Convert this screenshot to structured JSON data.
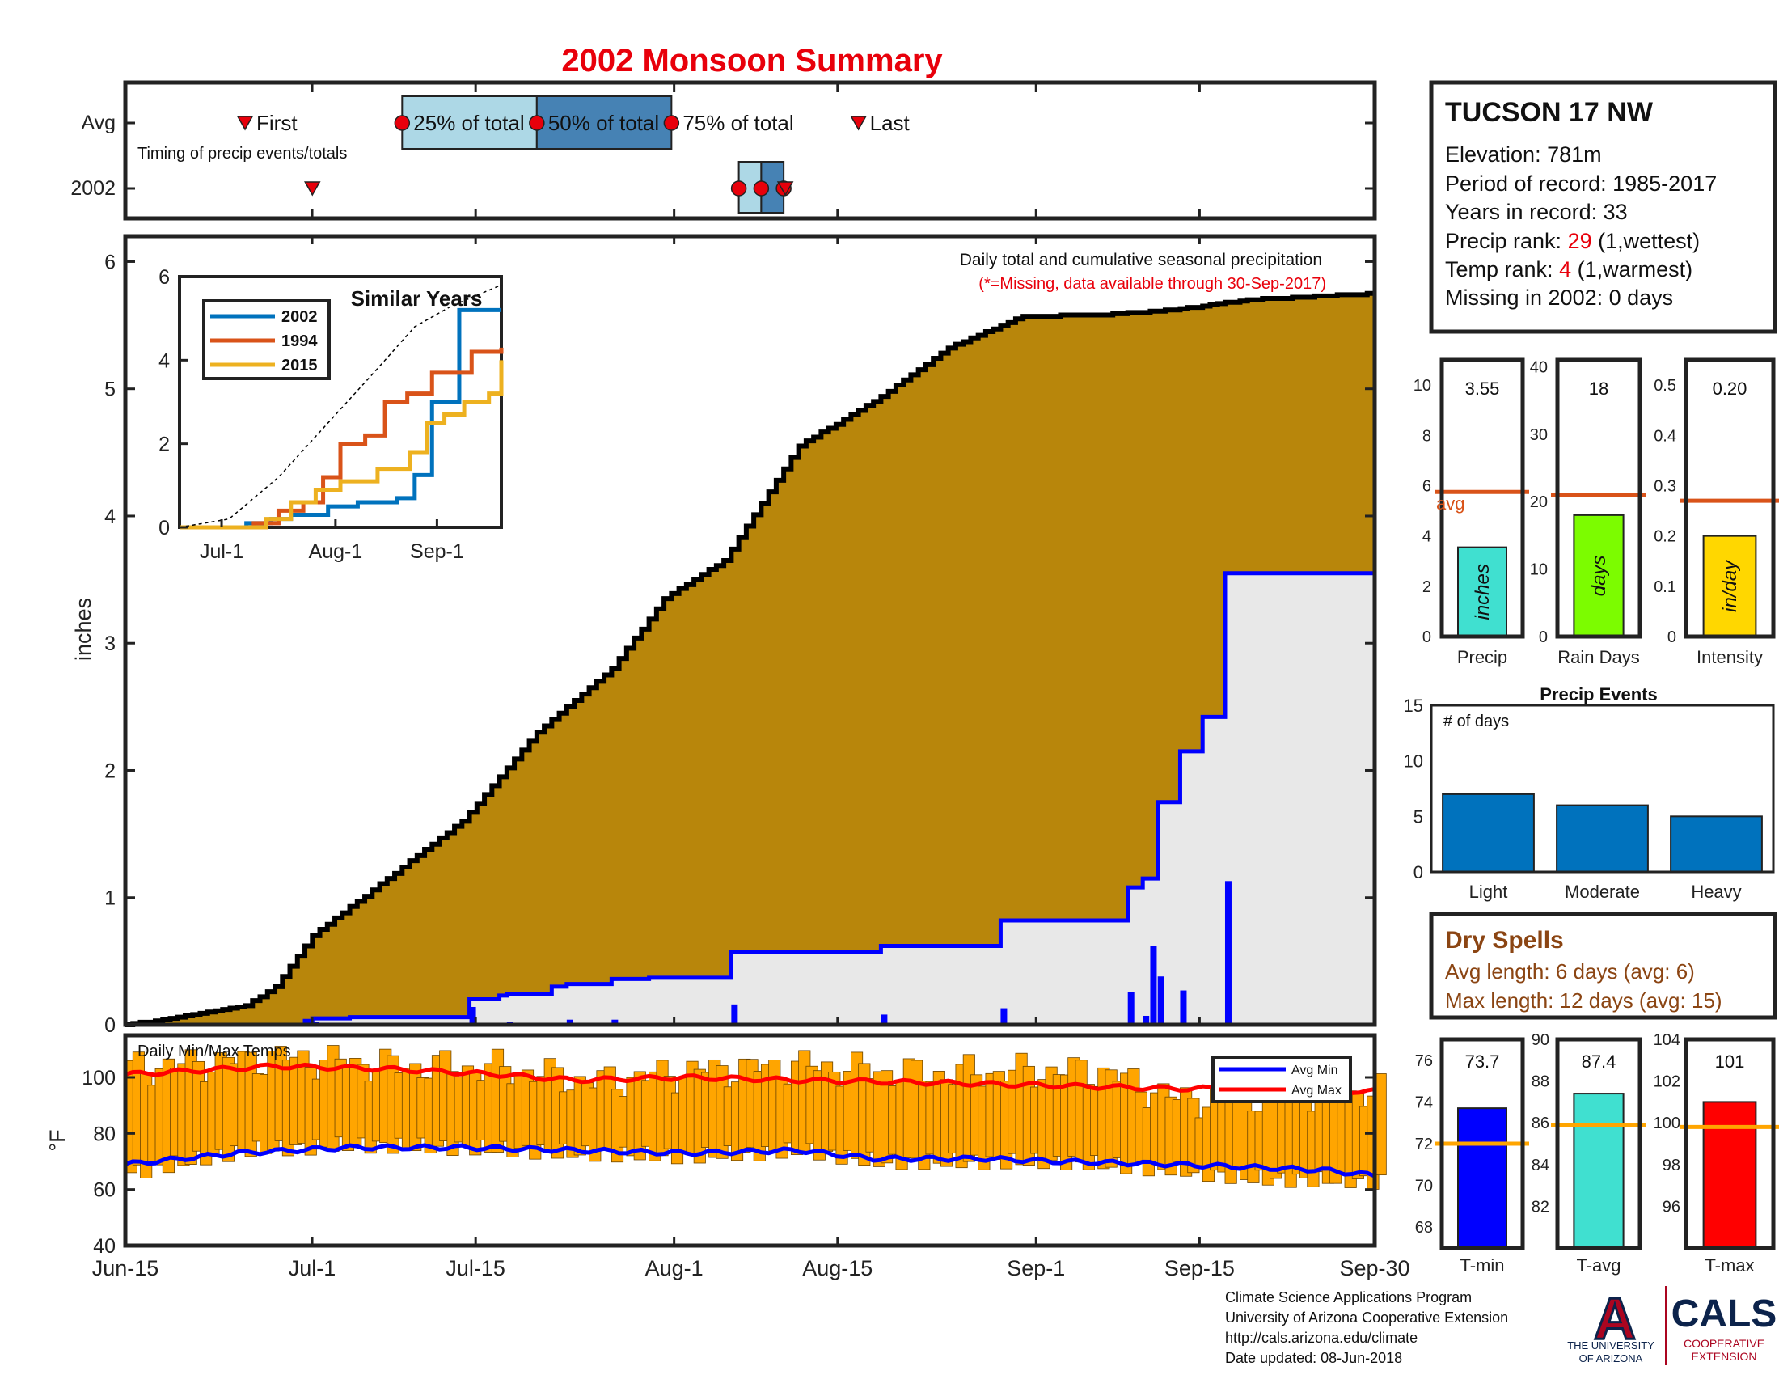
{
  "title": "2002 Monsoon Summary",
  "colors": {
    "title_red": "#e8000b",
    "accumulation_brown": "#b8860b",
    "gray_fill": "#e8e8e8",
    "obs_blue": "#0000ff",
    "avg_orange": "#d95319",
    "tmp_bar": "#ffa500",
    "dry_brown": "#8b4513"
  },
  "timing": {
    "row_avg": "Avg",
    "row_year": "2002",
    "caption": "Timing of precip events/totals",
    "labels": {
      "first": "First",
      "p25": "25% of total",
      "p50": "50% of total",
      "p75": "75% of total",
      "last": "Last"
    }
  },
  "station": {
    "name": "TUCSON 17 NW",
    "elevation": "Elevation: 781m",
    "period": "Period of record: 1985-2017",
    "years": "Years in record: 33",
    "precip_rank_label": "Precip rank: ",
    "precip_rank": "29",
    "precip_rank_note": " (1,wettest)",
    "temp_rank_label": "Temp rank: ",
    "temp_rank": "4",
    "temp_rank_note": " (1,warmest)",
    "missing": "Missing in 2002: 0 days"
  },
  "main": {
    "annotation": "Daily total and cumulative seasonal precipitation",
    "annotation_missing": "(*=Missing, data available through 30-Sep-2017)",
    "ylabel": "inches",
    "x_ticks": [
      "Jun-15",
      "Jul-1",
      "Jul-15",
      "Aug-1",
      "Aug-15",
      "Sep-1",
      "Sep-15",
      "Sep-30"
    ],
    "y_ticks": [
      "0",
      "1",
      "2",
      "3",
      "4",
      "5",
      "6"
    ]
  },
  "inset": {
    "title": "Similar Years",
    "legend": [
      "2002",
      "1994",
      "2015"
    ],
    "x_ticks": [
      "Jul-1",
      "Aug-1",
      "Sep-1"
    ],
    "y_ticks": [
      "0",
      "2",
      "4",
      "6"
    ]
  },
  "temps": {
    "caption": "Daily Min/Max Temps",
    "ylabel": "°F",
    "y_ticks": [
      "40",
      "60",
      "80",
      "100"
    ],
    "legend": [
      "Avg Min",
      "Avg Max"
    ]
  },
  "mini": {
    "precip": {
      "value": "3.55",
      "label": "Precip",
      "unit": "inches",
      "avg_label": "avg",
      "y_ticks": [
        "0",
        "2",
        "4",
        "6",
        "8",
        "10"
      ]
    },
    "raindays": {
      "value": "18",
      "label": "Rain Days",
      "unit": "days",
      "y_ticks": [
        "0",
        "10",
        "20",
        "30",
        "40"
      ]
    },
    "intensity": {
      "value": "0.20",
      "label": "Intensity",
      "unit": "in/day",
      "y_ticks": [
        "0",
        "0.1",
        "0.2",
        "0.3",
        "0.4",
        "0.5"
      ]
    }
  },
  "events": {
    "title": "Precip Events",
    "caption": "# of days",
    "categories": [
      "Light",
      "Moderate",
      "Heavy"
    ],
    "y_ticks": [
      "0",
      "5",
      "10",
      "15"
    ]
  },
  "dry_spells": {
    "title": "Dry Spells",
    "avg": "Avg length: 6 days (avg: 6)",
    "max": "Max length: 12 days (avg: 15)"
  },
  "temp_panels": {
    "tmin": {
      "value": "73.7",
      "label": "T-min",
      "y_ticks": [
        "68",
        "70",
        "72",
        "74",
        "76"
      ]
    },
    "tavg": {
      "value": "87.4",
      "label": "T-avg",
      "y_ticks": [
        "82",
        "84",
        "86",
        "88",
        "90"
      ]
    },
    "tmax": {
      "value": "101",
      "label": "T-max",
      "y_ticks": [
        "96",
        "98",
        "100",
        "102",
        "104"
      ]
    }
  },
  "footer": {
    "line1": "Climate Science Applications Program",
    "line2": "University of Arizona Cooperative Extension",
    "line3": "http://cals.arizona.edu/climate",
    "line4": " Date updated: 08-Jun-2018"
  },
  "logo": {
    "ua_letter": "A",
    "ua_line1": "THE UNIVERSITY",
    "ua_line2": "OF ARIZONA",
    "cals": "CALS",
    "cals_line1": "COOPERATIVE",
    "cals_line2": "EXTENSION"
  },
  "chart_data": [
    {
      "id": "cumulative",
      "type": "area",
      "start_date": "Jun-15",
      "ylim": [
        0,
        6.2
      ],
      "avg_cum_knots": [
        [
          0,
          0
        ],
        [
          5,
          0.04
        ],
        [
          16,
          0.15
        ],
        [
          20,
          0.3
        ],
        [
          25,
          0.7
        ],
        [
          35,
          1.15
        ],
        [
          45,
          1.6
        ],
        [
          55,
          2.3
        ],
        [
          65,
          2.8
        ],
        [
          72,
          3.35
        ],
        [
          80,
          3.65
        ],
        [
          90,
          4.55
        ],
        [
          100,
          4.9
        ],
        [
          110,
          5.32
        ],
        [
          120,
          5.57
        ],
        [
          130,
          5.58
        ],
        [
          140,
          5.62
        ],
        [
          150,
          5.7
        ],
        [
          167,
          5.75
        ]
      ],
      "obs_cum_steps": [
        [
          0,
          0
        ],
        [
          24,
          0.03
        ],
        [
          25,
          0.05
        ],
        [
          30,
          0.06
        ],
        [
          46,
          0.2
        ],
        [
          50,
          0.23
        ],
        [
          51,
          0.24
        ],
        [
          57,
          0.3
        ],
        [
          59,
          0.32
        ],
        [
          65,
          0.36
        ],
        [
          70,
          0.37
        ],
        [
          81,
          0.57
        ],
        [
          101,
          0.62
        ],
        [
          117,
          0.82
        ],
        [
          134,
          1.08
        ],
        [
          136,
          1.15
        ],
        [
          138,
          1.75
        ],
        [
          141,
          2.15
        ],
        [
          144,
          2.42
        ],
        [
          147,
          3.55
        ],
        [
          167,
          3.55
        ]
      ],
      "daily_precip": [
        [
          24,
          0.03
        ],
        [
          25,
          0.02
        ],
        [
          30,
          0.01
        ],
        [
          46,
          0.14
        ],
        [
          51,
          0.02
        ],
        [
          59,
          0.04
        ],
        [
          65,
          0.04
        ],
        [
          81,
          0.16
        ],
        [
          101,
          0.08
        ],
        [
          117,
          0.13
        ],
        [
          134,
          0.26
        ],
        [
          136,
          0.07
        ],
        [
          137,
          0.62
        ],
        [
          138,
          0.38
        ],
        [
          141,
          0.27
        ],
        [
          147,
          1.13
        ]
      ]
    },
    {
      "id": "similar_years",
      "type": "line",
      "ylim": [
        0,
        6
      ],
      "series": [
        {
          "name": "2002",
          "color": "#0072bd",
          "steps": [
            [
              0,
              0
            ],
            [
              27,
              0.1
            ],
            [
              37,
              0.2
            ],
            [
              45,
              0.3
            ],
            [
              60,
              0.5
            ],
            [
              72,
              0.6
            ],
            [
              88,
              0.7
            ],
            [
              95,
              1.25
            ],
            [
              98,
              1.25
            ],
            [
              102,
              3.0
            ],
            [
              113,
              5.2
            ],
            [
              130,
              5.2
            ]
          ]
        },
        {
          "name": "1994",
          "color": "#d95319",
          "steps": [
            [
              0,
              0
            ],
            [
              30,
              0.1
            ],
            [
              40,
              0.4
            ],
            [
              50,
              0.6
            ],
            [
              58,
              1.2
            ],
            [
              65,
              2.0
            ],
            [
              75,
              2.2
            ],
            [
              83,
              3.0
            ],
            [
              92,
              3.2
            ],
            [
              102,
              3.7
            ],
            [
              118,
              4.2
            ],
            [
              130,
              4.3
            ]
          ]
        },
        {
          "name": "2015",
          "color": "#edb120",
          "steps": [
            [
              0,
              0
            ],
            [
              35,
              0.2
            ],
            [
              45,
              0.6
            ],
            [
              55,
              0.9
            ],
            [
              65,
              1.1
            ],
            [
              80,
              1.4
            ],
            [
              93,
              1.8
            ],
            [
              100,
              2.5
            ],
            [
              107,
              2.7
            ],
            [
              115,
              3.0
            ],
            [
              125,
              3.2
            ],
            [
              130,
              4.0
            ]
          ]
        },
        {
          "name": "avg",
          "color": "#000000",
          "dashed": true,
          "steps": [
            [
              0,
              0
            ],
            [
              20,
              0.2
            ],
            [
              40,
              1.2
            ],
            [
              60,
              2.5
            ],
            [
              80,
              3.8
            ],
            [
              95,
              4.8
            ],
            [
              110,
              5.3
            ],
            [
              130,
              5.8
            ]
          ]
        }
      ]
    },
    {
      "id": "daily_temps",
      "type": "bar",
      "ylim": [
        40,
        115
      ],
      "avg_min_knots": [
        [
          0,
          69
        ],
        [
          15,
          73
        ],
        [
          30,
          75
        ],
        [
          45,
          75
        ],
        [
          60,
          74
        ],
        [
          75,
          73
        ],
        [
          90,
          74
        ],
        [
          100,
          71
        ],
        [
          115,
          71
        ],
        [
          125,
          70
        ],
        [
          140,
          69
        ],
        [
          150,
          68
        ],
        [
          160,
          67
        ],
        [
          167,
          65
        ]
      ],
      "avg_max_knots": [
        [
          0,
          101
        ],
        [
          20,
          104
        ],
        [
          35,
          103
        ],
        [
          50,
          101
        ],
        [
          60,
          99
        ],
        [
          75,
          100
        ],
        [
          90,
          99
        ],
        [
          110,
          98
        ],
        [
          125,
          97
        ],
        [
          140,
          96
        ],
        [
          150,
          96
        ],
        [
          167,
          95
        ]
      ],
      "tmax_knots": [
        [
          0,
          103
        ],
        [
          20,
          107
        ],
        [
          35,
          104
        ],
        [
          50,
          103
        ],
        [
          62,
          98
        ],
        [
          75,
          102
        ],
        [
          90,
          104
        ],
        [
          105,
          101
        ],
        [
          120,
          102
        ],
        [
          130,
          102
        ],
        [
          140,
          92
        ],
        [
          150,
          93
        ],
        [
          167,
          95
        ]
      ],
      "tmin_knots": [
        [
          0,
          66
        ],
        [
          15,
          74
        ],
        [
          30,
          76
        ],
        [
          45,
          75
        ],
        [
          60,
          73
        ],
        [
          75,
          72
        ],
        [
          90,
          74
        ],
        [
          100,
          70
        ],
        [
          115,
          70
        ],
        [
          125,
          70
        ],
        [
          140,
          67
        ],
        [
          150,
          64
        ],
        [
          167,
          63
        ]
      ]
    },
    {
      "id": "precip_total",
      "type": "bar",
      "value": 3.55,
      "avg": 5.75,
      "ylim": [
        0,
        11
      ]
    },
    {
      "id": "rain_days",
      "type": "bar",
      "value": 18,
      "avg": 21,
      "ylim": [
        0,
        41
      ]
    },
    {
      "id": "intensity",
      "type": "bar",
      "value": 0.2,
      "avg": 0.27,
      "ylim": [
        0,
        0.55
      ]
    },
    {
      "id": "precip_events",
      "type": "bar",
      "categories": [
        "Light",
        "Moderate",
        "Heavy"
      ],
      "values": [
        7,
        6,
        5
      ],
      "ylim": [
        0,
        15
      ]
    },
    {
      "id": "tmin",
      "type": "bar",
      "value": 73.7,
      "avg": 72,
      "ylim": [
        67,
        77
      ]
    },
    {
      "id": "tavg",
      "type": "bar",
      "value": 87.4,
      "avg": 85.9,
      "ylim": [
        80,
        90
      ]
    },
    {
      "id": "tmax",
      "type": "bar",
      "value": 101,
      "avg": 99.8,
      "ylim": [
        94,
        104
      ]
    },
    {
      "id": "timing",
      "type": "scatter",
      "avg_days": {
        "first": 16,
        "p25": 37,
        "p50": 55,
        "p75": 73,
        "last": 98
      },
      "year_days": {
        "first": 25,
        "p25": 82,
        "p50": 85,
        "p75": 88
      }
    }
  ]
}
